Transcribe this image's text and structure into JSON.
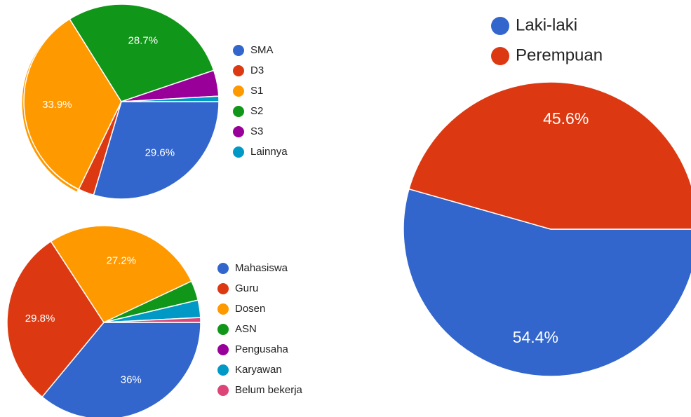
{
  "chart_data": [
    {
      "type": "pie",
      "categories": [
        "SMA",
        "D3",
        "S1",
        "S2",
        "S3",
        "Lainnya"
      ],
      "values": [
        29.6,
        2.6,
        33.9,
        28.7,
        4.3,
        0.9
      ],
      "value_labels": [
        "29.6%",
        null,
        "33.9%",
        "28.7%",
        null,
        null
      ],
      "colors": [
        "#3366cc",
        "#dc3912",
        "#ff9900",
        "#109618",
        "#990099",
        "#0099c6"
      ]
    },
    {
      "type": "pie",
      "categories": [
        "Mahasiswa",
        "Guru",
        "Dosen",
        "ASN",
        "Pengusaha",
        "Karyawan",
        "Belum bekerja"
      ],
      "values": [
        36,
        29.8,
        27.2,
        3.3,
        0,
        2.9,
        0.8
      ],
      "value_labels": [
        "36%",
        "29.8%",
        "27.2%",
        null,
        null,
        null,
        null
      ],
      "colors": [
        "#3366cc",
        "#dc3912",
        "#ff9900",
        "#109618",
        "#990099",
        "#0099c6",
        "#dd4477"
      ]
    },
    {
      "type": "pie",
      "categories": [
        "Laki-laki",
        "Perempuan"
      ],
      "values": [
        54.4,
        45.6
      ],
      "value_labels": [
        "54.4%",
        "45.6%"
      ],
      "colors": [
        "#3366cc",
        "#dc3912"
      ]
    }
  ]
}
